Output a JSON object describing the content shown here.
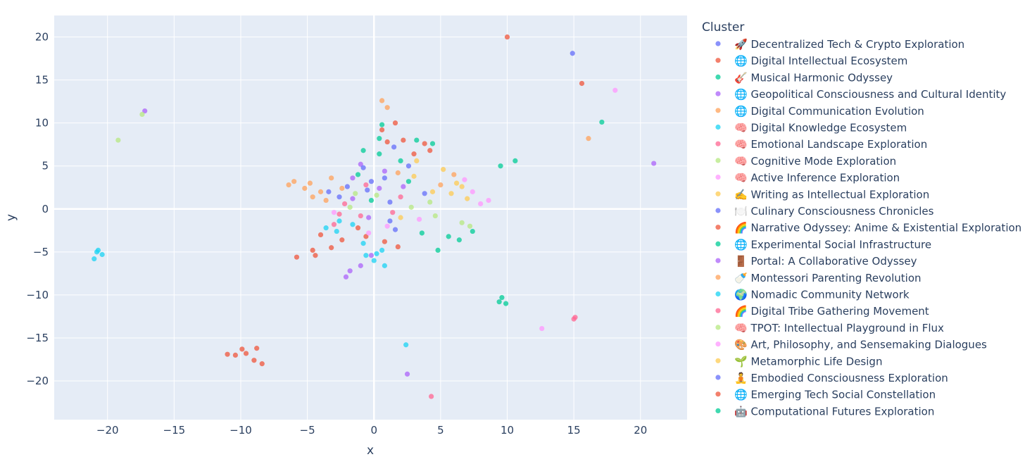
{
  "chart_data": {
    "type": "scatter",
    "title": "",
    "xlabel": "x",
    "ylabel": "y",
    "xlim": [
      -24,
      23.5
    ],
    "ylim": [
      -24.5,
      22.5
    ],
    "xticks": [
      -20,
      -15,
      -10,
      -5,
      0,
      5,
      10,
      15,
      20
    ],
    "yticks": [
      -20,
      -15,
      -10,
      -5,
      0,
      5,
      10,
      15,
      20
    ],
    "grid": true,
    "legend": {
      "title": "Cluster",
      "position": "right"
    },
    "series": [
      {
        "name": "🚀 Decentralized Tech & Crypto Exploration",
        "color": "#636efa",
        "points": [
          [
            14.9,
            18.1
          ],
          [
            1.5,
            7.2
          ],
          [
            0.8,
            3.6
          ],
          [
            2.6,
            5.0
          ],
          [
            -0.5,
            2.2
          ],
          [
            3.8,
            1.8
          ],
          [
            1.2,
            -1.4
          ]
        ]
      },
      {
        "name": "🌐 Digital Intellectual Ecosystem",
        "color": "#ef553b",
        "points": [
          [
            10.0,
            20.0
          ],
          [
            -9.6,
            -16.8
          ],
          [
            -10.4,
            -17.0
          ],
          [
            -8.8,
            -16.2
          ],
          [
            -9.0,
            -17.6
          ],
          [
            -11.0,
            -16.9
          ],
          [
            -8.4,
            -18.0
          ],
          [
            -9.9,
            -16.3
          ],
          [
            -3.2,
            -4.5
          ],
          [
            -4.6,
            -4.8
          ],
          [
            -2.4,
            -3.6
          ],
          [
            -5.8,
            -5.6
          ],
          [
            0.8,
            -3.8
          ],
          [
            1.8,
            -4.4
          ],
          [
            -0.6,
            -3.2
          ]
        ]
      },
      {
        "name": "🎸 Musical Harmonic Odyssey",
        "color": "#00cc96",
        "points": [
          [
            17.1,
            10.1
          ],
          [
            9.4,
            -10.8
          ],
          [
            9.9,
            -11.0
          ],
          [
            9.6,
            -10.3
          ],
          [
            5.6,
            -3.2
          ],
          [
            6.4,
            -3.6
          ],
          [
            7.4,
            -2.6
          ],
          [
            4.8,
            -4.8
          ],
          [
            9.5,
            5.0
          ],
          [
            10.6,
            5.6
          ],
          [
            3.2,
            8.0
          ],
          [
            4.4,
            7.6
          ],
          [
            0.6,
            9.8
          ]
        ]
      },
      {
        "name": "🌐 Geopolitical Consciousness and Cultural Identity",
        "color": "#ab63fa",
        "points": [
          [
            -17.2,
            11.4
          ],
          [
            21.0,
            5.3
          ],
          [
            2.5,
            -19.2
          ],
          [
            -1.8,
            -7.2
          ],
          [
            -1.0,
            -6.6
          ],
          [
            -2.1,
            -7.9
          ],
          [
            -0.2,
            -5.4
          ],
          [
            -1.0,
            5.2
          ],
          [
            0.4,
            2.4
          ],
          [
            -1.6,
            3.6
          ]
        ]
      },
      {
        "name": "🌐 Digital Communication Evolution",
        "color": "#FFA15A",
        "points": [
          [
            16.1,
            8.2
          ],
          [
            -6.0,
            3.2
          ],
          [
            -5.2,
            2.4
          ],
          [
            -4.0,
            2.0
          ],
          [
            -6.4,
            2.8
          ],
          [
            -3.2,
            3.6
          ],
          [
            -4.6,
            1.4
          ],
          [
            1.0,
            11.8
          ],
          [
            0.6,
            12.6
          ],
          [
            6.0,
            4.0
          ],
          [
            5.0,
            2.8
          ]
        ]
      },
      {
        "name": "🧠 Digital Knowledge Ecosystem",
        "color": "#19d3f3",
        "points": [
          [
            -20.8,
            -5.0
          ],
          [
            -21.0,
            -5.8
          ],
          [
            -20.4,
            -5.3
          ],
          [
            -20.7,
            -4.8
          ],
          [
            2.4,
            -15.8
          ],
          [
            0.0,
            -6.0
          ],
          [
            -0.6,
            -5.4
          ],
          [
            0.8,
            -6.6
          ],
          [
            0.2,
            -5.2
          ],
          [
            -3.6,
            -2.2
          ],
          [
            -2.6,
            -1.4
          ]
        ]
      },
      {
        "name": "🧠 Emotional Landscape Exploration",
        "color": "#FF6692",
        "points": [
          [
            15.1,
            -12.6
          ],
          [
            15.0,
            -12.8
          ],
          [
            -2.2,
            0.6
          ],
          [
            -1.0,
            -0.8
          ],
          [
            2.0,
            1.4
          ],
          [
            -3.0,
            -1.8
          ]
        ]
      },
      {
        "name": "🧠 Cognitive Mode Exploration",
        "color": "#B6E880",
        "points": [
          [
            -19.2,
            8.0
          ],
          [
            -17.4,
            11.0
          ],
          [
            6.6,
            -1.6
          ],
          [
            7.2,
            -2.0
          ],
          [
            4.2,
            0.8
          ],
          [
            -1.4,
            1.8
          ]
        ]
      },
      {
        "name": "🧠 Active Inference Exploration",
        "color": "#FF97FF",
        "points": [
          [
            18.1,
            13.8
          ],
          [
            12.6,
            -13.9
          ],
          [
            7.4,
            2.0
          ],
          [
            8.6,
            1.0
          ],
          [
            6.8,
            3.4
          ],
          [
            8.0,
            0.6
          ]
        ]
      },
      {
        "name": "✍️ Writing as Intellectual Exploration",
        "color": "#FECB52",
        "points": [
          [
            5.2,
            4.6
          ],
          [
            6.2,
            3.0
          ],
          [
            4.4,
            2.0
          ],
          [
            3.2,
            5.6
          ],
          [
            7.0,
            1.2
          ]
        ]
      },
      {
        "name": "🍽️ Culinary Consciousness Chronicles",
        "color": "#636efa",
        "points": [
          [
            -2.0,
            2.6
          ],
          [
            -0.8,
            4.8
          ],
          [
            1.2,
            0.8
          ],
          [
            -3.4,
            2.0
          ]
        ]
      },
      {
        "name": "🌈 Narrative Odyssey: Anime & Existential Exploration",
        "color": "#ef553b",
        "points": [
          [
            15.6,
            14.6
          ],
          [
            2.2,
            8.0
          ],
          [
            3.8,
            7.6
          ],
          [
            0.6,
            9.2
          ],
          [
            1.6,
            10.0
          ],
          [
            4.2,
            6.8
          ],
          [
            -4.4,
            -5.4
          ]
        ]
      },
      {
        "name": "🌐 Experimental Social Infrastructure",
        "color": "#00cc96",
        "points": [
          [
            -1.2,
            4.0
          ],
          [
            0.4,
            6.4
          ],
          [
            2.6,
            3.2
          ],
          [
            -0.2,
            1.0
          ]
        ]
      },
      {
        "name": "🚪 Portal: A Collaborative Odyssey",
        "color": "#ab63fa",
        "points": [
          [
            -1.6,
            1.2
          ],
          [
            0.8,
            4.4
          ],
          [
            -0.4,
            -1.0
          ],
          [
            2.2,
            2.6
          ]
        ]
      },
      {
        "name": "🍼 Montessori Parenting Revolution",
        "color": "#FFA15A",
        "points": [
          [
            -4.8,
            3.0
          ],
          [
            -3.6,
            1.0
          ],
          [
            -2.4,
            2.4
          ],
          [
            1.8,
            4.2
          ]
        ]
      },
      {
        "name": "🌍 Nomadic Community Network",
        "color": "#19d3f3",
        "points": [
          [
            -2.8,
            -2.6
          ],
          [
            -1.6,
            -1.8
          ],
          [
            0.6,
            -4.8
          ],
          [
            -0.8,
            -4.0
          ]
        ]
      },
      {
        "name": "🌈 Digital Tribe Gathering Movement",
        "color": "#FF6692",
        "points": [
          [
            4.3,
            -21.8
          ],
          [
            -0.6,
            2.8
          ],
          [
            1.4,
            -0.4
          ],
          [
            -2.6,
            -0.6
          ]
        ]
      },
      {
        "name": "🧠 TPOT: Intellectual Playground in Flux",
        "color": "#B6E880",
        "points": [
          [
            0.2,
            1.6
          ],
          [
            2.8,
            0.2
          ],
          [
            -1.8,
            0.2
          ],
          [
            4.6,
            -0.8
          ]
        ]
      },
      {
        "name": "🎨 Art, Philosophy, and Sensemaking Dialogues",
        "color": "#FF97FF",
        "points": [
          [
            -3.0,
            -0.4
          ],
          [
            3.4,
            -1.2
          ],
          [
            1.0,
            -2.0
          ],
          [
            -0.4,
            -2.8
          ]
        ]
      },
      {
        "name": "🌱 Metamorphic Life Design",
        "color": "#FECB52",
        "points": [
          [
            5.8,
            1.8
          ],
          [
            3.0,
            3.8
          ],
          [
            6.6,
            2.6
          ],
          [
            2.0,
            -1.0
          ]
        ]
      },
      {
        "name": "🧘 Embodied Consciousness Exploration",
        "color": "#636efa",
        "points": [
          [
            -2.6,
            1.4
          ],
          [
            1.6,
            -2.4
          ],
          [
            -0.2,
            3.2
          ]
        ]
      },
      {
        "name": "🌐 Emerging Tech Social Constellation",
        "color": "#ef553b",
        "points": [
          [
            1.0,
            7.8
          ],
          [
            -4.0,
            -3.0
          ],
          [
            3.0,
            6.4
          ],
          [
            -1.2,
            -2.2
          ]
        ]
      },
      {
        "name": "🤖 Computational Futures Exploration",
        "color": "#00cc96",
        "points": [
          [
            0.4,
            8.2
          ],
          [
            2.0,
            5.6
          ],
          [
            -0.8,
            6.8
          ],
          [
            3.6,
            -2.8
          ]
        ]
      }
    ]
  }
}
